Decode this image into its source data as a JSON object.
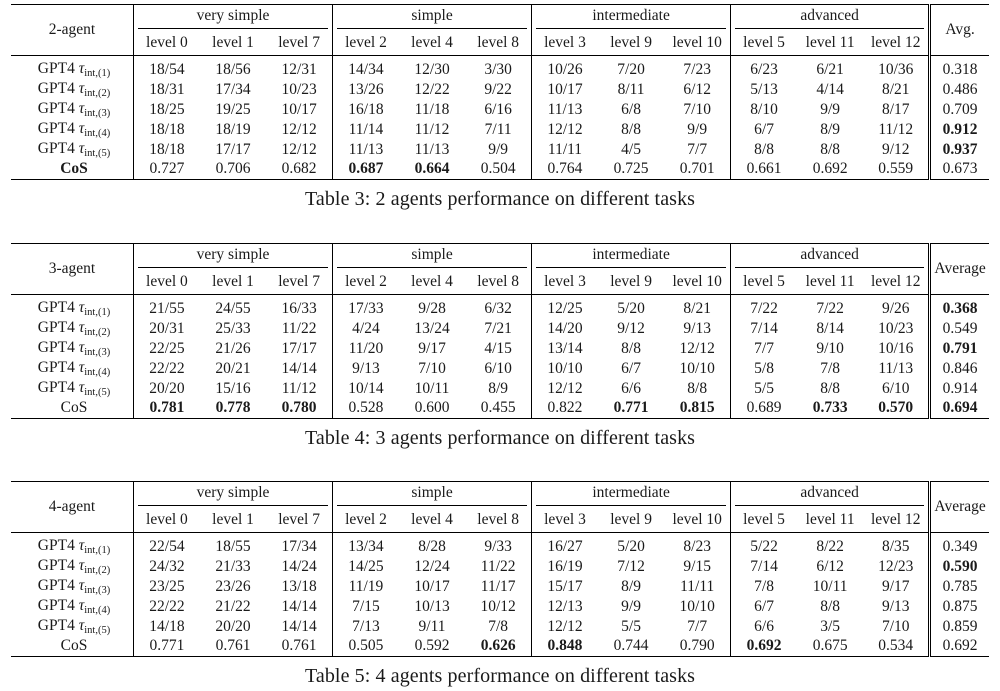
{
  "tables": [
    {
      "id": "t3",
      "corner": "2-agent",
      "avg_label": "Avg.",
      "groups": [
        "very simple",
        "simple",
        "intermediate",
        "advanced"
      ],
      "levels": [
        "level 0",
        "level 1",
        "level 7",
        "level 2",
        "level 4",
        "level 8",
        "level 3",
        "level 9",
        "level 10",
        "level 5",
        "level 11",
        "level 12"
      ],
      "rows": [
        {
          "model": "GPT4",
          "sub": "int,(1)",
          "cells": [
            "18/54",
            "18/56",
            "12/31",
            "14/34",
            "12/30",
            "3/30",
            "10/26",
            "7/20",
            "7/23",
            "6/23",
            "6/21",
            "10/36"
          ],
          "avg": "0.318",
          "bold": []
        },
        {
          "model": "GPT4",
          "sub": "int,(2)",
          "cells": [
            "18/31",
            "17/34",
            "10/23",
            "13/26",
            "12/22",
            "9/22",
            "10/17",
            "8/11",
            "6/12",
            "5/13",
            "4/14",
            "8/21"
          ],
          "avg": "0.486",
          "bold": []
        },
        {
          "model": "GPT4",
          "sub": "int,(3)",
          "cells": [
            "18/25",
            "19/25",
            "10/17",
            "16/18",
            "11/18",
            "6/16",
            "11/13",
            "6/8",
            "7/10",
            "8/10",
            "9/9",
            "8/17"
          ],
          "avg": "0.709",
          "bold": []
        },
        {
          "model": "GPT4",
          "sub": "int,(4)",
          "cells": [
            "18/18",
            "18/19",
            "12/12",
            "11/14",
            "11/12",
            "7/11",
            "12/12",
            "8/8",
            "9/9",
            "6/7",
            "8/9",
            "11/12"
          ],
          "avg": "0.912",
          "bold": [
            12
          ]
        },
        {
          "model": "GPT4",
          "sub": "int,(5)",
          "cells": [
            "18/18",
            "17/17",
            "12/12",
            "11/13",
            "11/13",
            "9/9",
            "11/11",
            "4/5",
            "7/7",
            "8/8",
            "8/8",
            "9/12"
          ],
          "avg": "0.937",
          "bold": [
            12
          ]
        },
        {
          "model": "CoS",
          "sub": "",
          "cells": [
            "0.727",
            "0.706",
            "0.682",
            "0.687",
            "0.664",
            "0.504",
            "0.764",
            "0.725",
            "0.701",
            "0.661",
            "0.692",
            "0.559"
          ],
          "avg": "0.673",
          "bold": [
            3,
            4
          ],
          "bold_label": true
        }
      ],
      "caption": "Table 3: 2 agents performance on different tasks"
    },
    {
      "id": "t4",
      "corner": "3-agent",
      "avg_label": "Average",
      "groups": [
        "very simple",
        "simple",
        "intermediate",
        "advanced"
      ],
      "levels": [
        "level 0",
        "level 1",
        "level 7",
        "level 2",
        "level 4",
        "level 8",
        "level 3",
        "level 9",
        "level 10",
        "level 5",
        "level 11",
        "level 12"
      ],
      "rows": [
        {
          "model": "GPT4",
          "sub": "int,(1)",
          "cells": [
            "21/55",
            "24/55",
            "16/33",
            "17/33",
            "9/28",
            "6/32",
            "12/25",
            "5/20",
            "8/21",
            "7/22",
            "7/22",
            "9/26"
          ],
          "avg": "0.368",
          "bold": [
            12
          ]
        },
        {
          "model": "GPT4",
          "sub": "int,(2)",
          "cells": [
            "20/31",
            "25/33",
            "11/22",
            "4/24",
            "13/24",
            "7/21",
            "14/20",
            "9/12",
            "9/13",
            "7/14",
            "8/14",
            "10/23"
          ],
          "avg": "0.549",
          "bold": []
        },
        {
          "model": "GPT4",
          "sub": "int,(3)",
          "cells": [
            "22/25",
            "21/26",
            "17/17",
            "11/20",
            "9/17",
            "4/15",
            "13/14",
            "8/8",
            "12/12",
            "7/7",
            "9/10",
            "10/16"
          ],
          "avg": "0.791",
          "bold": [
            12
          ]
        },
        {
          "model": "GPT4",
          "sub": "int,(4)",
          "cells": [
            "22/22",
            "20/21",
            "14/14",
            "9/13",
            "7/10",
            "6/10",
            "10/10",
            "6/7",
            "10/10",
            "5/8",
            "7/8",
            "11/13"
          ],
          "avg": "0.846",
          "bold": []
        },
        {
          "model": "GPT4",
          "sub": "int,(5)",
          "cells": [
            "20/20",
            "15/16",
            "11/12",
            "10/14",
            "10/11",
            "8/9",
            "12/12",
            "6/6",
            "8/8",
            "5/5",
            "8/8",
            "6/10"
          ],
          "avg": "0.914",
          "bold": []
        },
        {
          "model": "CoS",
          "sub": "",
          "cells": [
            "0.781",
            "0.778",
            "0.780",
            "0.528",
            "0.600",
            "0.455",
            "0.822",
            "0.771",
            "0.815",
            "0.689",
            "0.733",
            "0.570"
          ],
          "avg": "0.694",
          "bold": [
            0,
            1,
            2,
            7,
            8,
            10,
            11,
            12
          ],
          "bold_label": false
        }
      ],
      "caption": "Table 4: 3 agents performance on different tasks"
    },
    {
      "id": "t5",
      "corner": "4-agent",
      "avg_label": "Average",
      "groups": [
        "very simple",
        "simple",
        "intermediate",
        "advanced"
      ],
      "levels": [
        "level 0",
        "level 1",
        "level 7",
        "level 2",
        "level 4",
        "level 8",
        "level 3",
        "level 9",
        "level 10",
        "level 5",
        "level 11",
        "level 12"
      ],
      "rows": [
        {
          "model": "GPT4",
          "sub": "int,(1)",
          "cells": [
            "22/54",
            "18/55",
            "17/34",
            "13/34",
            "8/28",
            "9/33",
            "16/27",
            "5/20",
            "8/23",
            "5/22",
            "8/22",
            "8/35"
          ],
          "avg": "0.349",
          "bold": []
        },
        {
          "model": "GPT4",
          "sub": "int,(2)",
          "cells": [
            "24/32",
            "21/33",
            "14/24",
            "14/25",
            "12/24",
            "11/22",
            "16/19",
            "7/12",
            "9/15",
            "7/14",
            "6/12",
            "12/23"
          ],
          "avg": "0.590",
          "bold": [
            12
          ]
        },
        {
          "model": "GPT4",
          "sub": "int,(3)",
          "cells": [
            "23/25",
            "23/26",
            "13/18",
            "11/19",
            "10/17",
            "11/17",
            "15/17",
            "8/9",
            "11/11",
            "7/8",
            "10/11",
            "9/17"
          ],
          "avg": "0.785",
          "bold": []
        },
        {
          "model": "GPT4",
          "sub": "int,(4)",
          "cells": [
            "22/22",
            "21/22",
            "14/14",
            "7/15",
            "10/13",
            "10/12",
            "12/13",
            "9/9",
            "10/10",
            "6/7",
            "8/8",
            "9/13"
          ],
          "avg": "0.875",
          "bold": []
        },
        {
          "model": "GPT4",
          "sub": "int,(5)",
          "cells": [
            "14/18",
            "20/20",
            "14/14",
            "7/13",
            "9/11",
            "7/8",
            "12/12",
            "5/5",
            "7/7",
            "6/6",
            "3/5",
            "7/10"
          ],
          "avg": "0.859",
          "bold": []
        },
        {
          "model": "CoS",
          "sub": "",
          "cells": [
            "0.771",
            "0.761",
            "0.761",
            "0.505",
            "0.592",
            "0.626",
            "0.848",
            "0.744",
            "0.790",
            "0.692",
            "0.675",
            "0.534"
          ],
          "avg": "0.692",
          "bold": [
            5,
            6,
            9
          ],
          "bold_label": false
        }
      ],
      "caption": "Table 5: 4 agents performance on different tasks"
    }
  ],
  "tau_symbol": "τ"
}
